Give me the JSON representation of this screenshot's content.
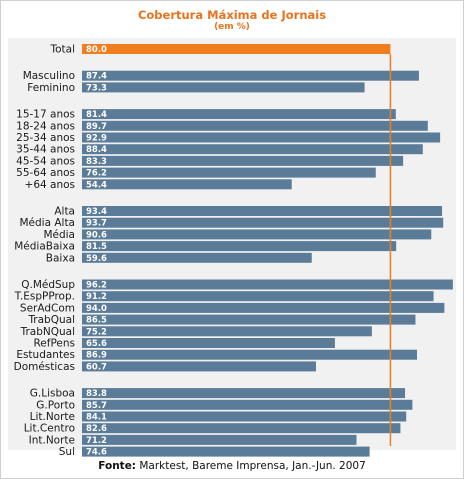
{
  "title": "Cobertura Máxima de Jornais",
  "subtitle": "(em %)",
  "footer": {
    "source_label": "Fonte:",
    "source_text": " Marktest, Bareme Imprensa, Jan.-Jun. 2007"
  },
  "colors": {
    "bar": "#5a7c98",
    "highlight": "#f07d1e",
    "reference_line": "#f07d1e",
    "title": "#e8731d"
  },
  "chart_data": {
    "type": "bar",
    "orientation": "horizontal",
    "title": "Cobertura Máxima de Jornais",
    "subtitle": "(em %)",
    "reference_value": 80.0,
    "xlim": [
      0,
      100
    ],
    "grid": false,
    "groups": [
      {
        "categories": [
          "Total"
        ],
        "values": [
          80.0
        ],
        "highlight": true
      },
      {
        "categories": [
          "Masculino",
          "Feminino"
        ],
        "values": [
          87.4,
          73.3
        ]
      },
      {
        "categories": [
          "15-17 anos",
          "18-24 anos",
          "25-34 anos",
          "35-44 anos",
          "45-54 anos",
          "55-64 anos",
          "+64 anos"
        ],
        "values": [
          81.4,
          89.7,
          92.9,
          88.4,
          83.3,
          76.2,
          54.4
        ]
      },
      {
        "categories": [
          "Alta",
          "Média Alta",
          "Média",
          "MédiaBaixa",
          "Baixa"
        ],
        "values": [
          93.4,
          93.7,
          90.6,
          81.5,
          59.6
        ]
      },
      {
        "categories": [
          "Q.MédSup",
          "T.EspPProp.",
          "SerAdCom",
          "TrabQual",
          "TrabNQual",
          "RefPens",
          "Estudantes",
          "Domésticas"
        ],
        "values": [
          96.2,
          91.2,
          94.0,
          86.5,
          75.2,
          65.6,
          86.9,
          60.7
        ]
      },
      {
        "categories": [
          "G.Lisboa",
          "G.Porto",
          "Lit.Norte",
          "Lit.Centro",
          "Int.Norte",
          "Sul"
        ],
        "values": [
          83.8,
          85.7,
          84.1,
          82.6,
          71.2,
          74.6
        ]
      }
    ]
  }
}
